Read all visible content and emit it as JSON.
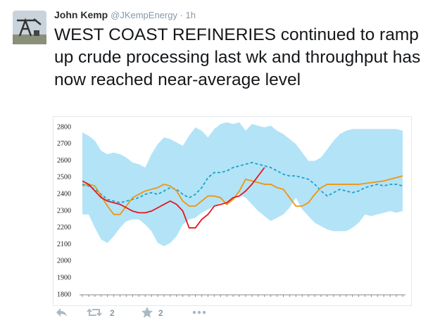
{
  "tweet": {
    "author": "John Kemp",
    "handle": "@JKempEnergy",
    "time": "1h",
    "text": "WEST COAST REFINERIES continued to ramp up crude processing last wk and throughput has now reached near-average level",
    "retweets": 2,
    "likes": 2
  },
  "chart_data": {
    "type": "line",
    "categories": [
      null,
      null,
      null,
      null,
      null,
      null,
      null,
      null,
      null,
      null,
      null,
      null,
      null,
      null,
      null,
      null,
      null,
      null,
      null,
      null,
      null,
      null,
      null,
      null,
      null,
      null,
      null,
      null,
      null,
      null,
      null,
      null,
      null,
      null,
      null,
      null,
      null,
      null,
      null,
      null,
      null,
      null,
      null,
      null,
      null,
      null,
      null,
      null,
      null,
      null,
      null,
      null
    ],
    "ylim": [
      1800,
      2800
    ],
    "yticks": [
      1800,
      1900,
      2000,
      2100,
      2200,
      2300,
      2400,
      2500,
      2600,
      2700,
      2800
    ],
    "band": {
      "color": "#b3e3f7",
      "high": [
        2770,
        2750,
        2720,
        2660,
        2640,
        2650,
        2640,
        2620,
        2590,
        2580,
        2560,
        2640,
        2700,
        2740,
        2730,
        2710,
        2690,
        2750,
        2800,
        2780,
        2740,
        2790,
        2820,
        2830,
        2820,
        2830,
        2780,
        2820,
        2810,
        2800,
        2810,
        2780,
        2760,
        2730,
        2700,
        2650,
        2600,
        2600,
        2620,
        2670,
        2720,
        2760,
        2780,
        2790,
        2790,
        2790,
        2790,
        2790,
        2790,
        2790,
        2790,
        2780
      ],
      "low": [
        2280,
        2280,
        2200,
        2130,
        2110,
        2150,
        2200,
        2240,
        2250,
        2250,
        2220,
        2180,
        2110,
        2090,
        2110,
        2150,
        2220,
        2250,
        2260,
        2290,
        2310,
        2330,
        2350,
        2350,
        2370,
        2400,
        2380,
        2340,
        2300,
        2270,
        2240,
        2260,
        2280,
        2320,
        2380,
        2310,
        2270,
        2230,
        2210,
        2190,
        2180,
        2180,
        2180,
        2200,
        2230,
        2280,
        2270,
        2280,
        2290,
        2300,
        2290,
        2300
      ]
    },
    "series": [
      {
        "color": "#1aa3c9",
        "dashed": true,
        "values": [
          2460,
          2450,
          2430,
          2400,
          2370,
          2360,
          2350,
          2360,
          2370,
          2380,
          2400,
          2410,
          2400,
          2420,
          2440,
          2430,
          2400,
          2380,
          2400,
          2440,
          2500,
          2530,
          2530,
          2540,
          2560,
          2570,
          2580,
          2590,
          2580,
          2570,
          2560,
          2540,
          2520,
          2510,
          2510,
          2500,
          2490,
          2460,
          2420,
          2390,
          2410,
          2430,
          2420,
          2410,
          2420,
          2440,
          2450,
          2460,
          2450,
          2460,
          2460,
          2450
        ]
      },
      {
        "color": "#f0950e",
        "values": [
          2450,
          2460,
          2450,
          2390,
          2330,
          2280,
          2280,
          2330,
          2380,
          2400,
          2420,
          2430,
          2440,
          2460,
          2450,
          2420,
          2360,
          2330,
          2330,
          2360,
          2390,
          2390,
          2380,
          2340,
          2370,
          2420,
          2490,
          2480,
          2470,
          2460,
          2460,
          2440,
          2430,
          2380,
          2330,
          2330,
          2350,
          2400,
          2440,
          2460,
          2460,
          2460,
          2460,
          2460,
          2460,
          2465,
          2470,
          2475,
          2480,
          2490,
          2500,
          2510
        ]
      },
      {
        "color": "#e3171b",
        "values": [
          2480,
          2460,
          2420,
          2380,
          2360,
          2350,
          2340,
          2320,
          2300,
          2290,
          2290,
          2300,
          2320,
          2340,
          2360,
          2340,
          2300,
          2200,
          2200,
          2250,
          2280,
          2330,
          2340,
          2350,
          2380,
          2390,
          2420,
          2460,
          2510,
          2560,
          null,
          null,
          null,
          null,
          null,
          null,
          null,
          null,
          null,
          null,
          null,
          null,
          null,
          null,
          null,
          null,
          null,
          null,
          null,
          null,
          null,
          null
        ]
      }
    ]
  }
}
